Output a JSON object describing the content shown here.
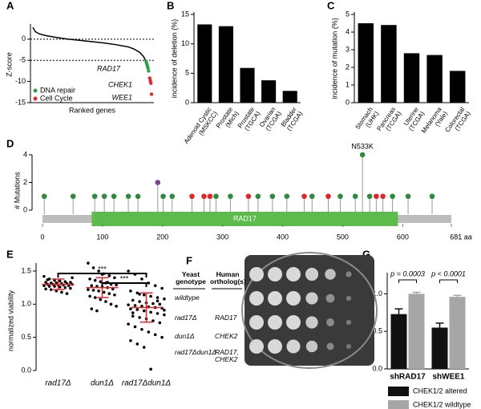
{
  "chart_data": [
    {
      "type": "line",
      "panel": "A",
      "ylabel": "Z-score",
      "xlabel": "Ranked genes",
      "xlim": [
        0,
        100
      ],
      "ylim": [
        -15,
        3
      ],
      "yticks": [
        0,
        -5,
        -10,
        -15
      ],
      "hlines": [
        0,
        -5
      ],
      "curve": {
        "color": "#000000",
        "x": [
          0,
          2,
          5,
          10,
          20,
          30,
          40,
          50,
          60,
          70,
          80,
          85,
          90,
          93,
          95
        ],
        "values": [
          2.8,
          1.8,
          1.3,
          0.9,
          0.4,
          0,
          -0.3,
          -0.6,
          -0.9,
          -1.3,
          -1.8,
          -2.3,
          -3.1,
          -4,
          -5
        ]
      },
      "series": [
        {
          "name": "DNA repair",
          "color": "#2e9e48",
          "x": [
            95.5,
            96,
            96.5,
            97,
            97.5
          ],
          "values": [
            -5.3,
            -5.8,
            -6.3,
            -6.8,
            -7.5
          ]
        },
        {
          "name": "Cell Cycle",
          "color": "#e3262a",
          "x": [
            98.5,
            99,
            99.5,
            100
          ],
          "values": [
            -9.2,
            -9.8,
            -10.4,
            -13
          ]
        }
      ],
      "annotations": [
        "RAD17",
        "CHEK1",
        "WEE1"
      ]
    },
    {
      "type": "bar",
      "panel": "B",
      "ylabel": "incidence of deletion (%)",
      "color": "#000000",
      "categories": [
        "Adenoid Cystic\n(MSKCC)",
        "Prostate\n(Mich)",
        "Prostate\n(TGCA)",
        "Ovarian\n(TCGA)",
        "Bladder\n(TCGA)"
      ],
      "values": [
        13.3,
        13.0,
        5.9,
        3.8,
        2.0
      ],
      "ylim": [
        0,
        15
      ],
      "yticks": [
        0,
        5,
        10,
        15
      ]
    },
    {
      "type": "bar",
      "panel": "C",
      "ylabel": "incidence of mutation (%)",
      "color": "#000000",
      "categories": [
        "Stomach\n(UHK)",
        "Pancreas\n(TCGA)",
        "Uterine\n(TCGA)",
        "Melanoma\n(Yale)",
        "Colorectal\n(TCGA)"
      ],
      "values": [
        4.5,
        4.4,
        2.8,
        2.7,
        1.8
      ],
      "ylim": [
        0,
        5
      ],
      "yticks": [
        0,
        1,
        2,
        3,
        4,
        5
      ]
    },
    {
      "type": "lollipop",
      "panel": "D",
      "ylabel": "# Mutations",
      "xlim": [
        0,
        681
      ],
      "ylim": [
        0,
        4
      ],
      "yticks": [
        0,
        2,
        4
      ],
      "xticks": [
        0,
        100,
        200,
        300,
        400,
        500,
        600,
        {
          "value": 681,
          "label": "681 aa"
        }
      ],
      "domain": {
        "name": "RAD17",
        "start": 82,
        "end": 592,
        "color": "#5dbb4d"
      },
      "x": [
        3,
        51,
        87,
        103,
        119,
        143,
        159,
        192,
        201,
        216,
        249,
        269,
        279,
        289,
        313,
        343,
        359,
        383,
        407,
        436,
        449,
        476,
        496,
        521,
        533,
        545,
        556,
        567,
        583,
        609,
        649
      ],
      "values": [
        1,
        1,
        1,
        1,
        1,
        1,
        1,
        2,
        1,
        1,
        1,
        1,
        1,
        1,
        1,
        1,
        1,
        1,
        1,
        1,
        1,
        1,
        1,
        1,
        4,
        1,
        1,
        1,
        1,
        1,
        1
      ],
      "colors": [
        "#2e8b3e",
        "#2e8b3e",
        "#2e8b3e",
        "#2e8b3e",
        "#2e8b3e",
        "#2e8b3e",
        "#2e8b3e",
        "#7b3f98",
        "#2e8b3e",
        "#2e8b3e",
        "#e3262a",
        "#e3262a",
        "#e3262a",
        "#2e8b3e",
        "#2e8b3e",
        "#e3262a",
        "#2e8b3e",
        "#2e8b3e",
        "#2e8b3e",
        "#e3262a",
        "#2e8b3e",
        "#e3262a",
        "#2e8b3e",
        "#2e8b3e",
        "#2e8b3e",
        "#2e8b3e",
        "#e3262a",
        "#e3262a",
        "#2e8b3e",
        "#2e8b3e",
        "#2e8b3e"
      ],
      "annotations": [
        "N533K"
      ]
    },
    {
      "type": "scatter",
      "panel": "E",
      "ylabel": "normalized viability",
      "ylim": [
        0,
        1.5
      ],
      "yticks": [
        {
          "value": 0,
          "label": "0.0"
        },
        {
          "value": 0.5,
          "label": "0.5"
        },
        {
          "value": 1,
          "label": "1.0"
        },
        {
          "value": 1.5,
          "label": "1.5"
        }
      ],
      "categories": [
        "rad17Δ",
        "dun1Δ",
        "rad17Δdun1Δ"
      ],
      "color": "#000000",
      "summary_color": "#e3262a",
      "groups": [
        {
          "values": [
            1.42,
            1.38,
            1.36,
            1.35,
            1.34,
            1.33,
            1.33,
            1.32,
            1.32,
            1.31,
            1.31,
            1.3,
            1.3,
            1.3,
            1.29,
            1.29,
            1.28,
            1.28,
            1.27,
            1.27,
            1.26,
            1.25,
            1.24,
            1.23,
            1.22,
            1.2,
            1.18,
            1.16,
            1.4,
            1.37
          ],
          "mean": 1.3,
          "sd": 0.08
        },
        {
          "values": [
            1.62,
            1.55,
            1.5,
            1.46,
            1.43,
            1.4,
            1.38,
            1.36,
            1.34,
            1.32,
            1.3,
            1.29,
            1.28,
            1.27,
            1.26,
            1.25,
            1.24,
            1.22,
            1.21,
            1.2,
            1.18,
            1.16,
            1.14,
            1.12,
            1.1,
            1.07,
            1.04,
            1.0,
            0.97,
            0.93,
            0.9,
            1.45,
            1.33,
            1.23
          ],
          "mean": 1.25,
          "sd": 0.15
        },
        {
          "values": [
            1.5,
            1.45,
            1.38,
            1.32,
            1.28,
            1.24,
            1.2,
            1.17,
            1.14,
            1.12,
            1.1,
            1.08,
            1.06,
            1.04,
            1.02,
            1.01,
            1.0,
            0.99,
            0.98,
            0.97,
            0.96,
            0.95,
            0.94,
            0.93,
            0.92,
            0.9,
            0.88,
            0.86,
            0.84,
            0.82,
            0.8,
            0.78,
            0.75,
            0.72,
            0.7,
            0.66,
            0.62,
            0.58,
            0.54,
            0.5,
            0.45,
            0.4,
            0.35,
            0.02,
            1.05,
            0.91,
            0.87,
            1.15
          ],
          "mean": 0.95,
          "sd": 0.22
        }
      ],
      "annotations": [
        "***",
        "***"
      ]
    },
    {
      "type": "bar",
      "panel": "G",
      "ylabel": "relative viability",
      "ylim": [
        0,
        1.25
      ],
      "yticks": [
        {
          "value": 0,
          "label": "0.0"
        },
        {
          "value": 0.5,
          "label": "0.5"
        },
        {
          "value": 1,
          "label": "1.0"
        }
      ],
      "categories": [
        "shRAD17",
        "shWEE1"
      ],
      "series": [
        {
          "name": "CHEK1/2 altered",
          "color": "#111111",
          "values": [
            0.73,
            0.55
          ],
          "errors": [
            0.07,
            0.06
          ]
        },
        {
          "name": "CHEK1/2 wildtype",
          "color": "#a6a6a6",
          "values": [
            1.0,
            0.96
          ],
          "errors": [
            0.02,
            0.02
          ]
        }
      ],
      "annotations": [
        "p = 0.0003",
        "p < 0.0001"
      ]
    }
  ],
  "panel_f": {
    "panel": "F",
    "headers": [
      "Yeast\ngenotype",
      "Human\northolog(s)"
    ],
    "rows": [
      [
        "wildtype",
        ""
      ],
      [
        "rad17Δ",
        "RAD17"
      ],
      [
        "dun1Δ",
        "CHEK2"
      ],
      [
        "rad17Δdun1Δ",
        "RAD17,\nCHEK2"
      ]
    ]
  }
}
